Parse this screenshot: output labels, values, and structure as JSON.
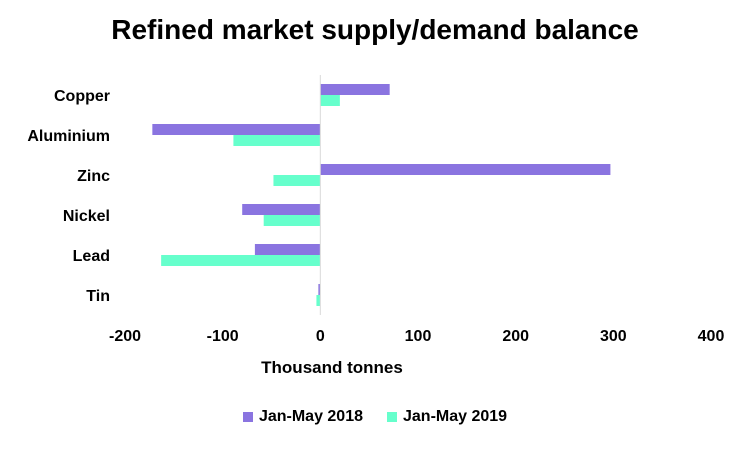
{
  "chart_data": {
    "type": "bar",
    "orientation": "horizontal",
    "title": "Refined market supply/demand balance",
    "xlabel": "Thousand tonnes",
    "ylabel": "",
    "categories": [
      "Copper",
      "Aluminium",
      "Zinc",
      "Nickel",
      "Lead",
      "Tin"
    ],
    "series": [
      {
        "name": "Jan-May 2018",
        "color": "#8a74e0",
        "values": [
          71,
          -172,
          297,
          -80,
          -67,
          -2
        ]
      },
      {
        "name": "Jan-May 2019",
        "color": "#66ffcc",
        "values": [
          20,
          -89,
          -48,
          -58,
          -163,
          -4
        ]
      }
    ],
    "xlim": [
      -200,
      400
    ],
    "xticks": [
      -200,
      -100,
      0,
      100,
      200,
      300,
      400
    ],
    "grid": false,
    "legend_position": "bottom"
  }
}
